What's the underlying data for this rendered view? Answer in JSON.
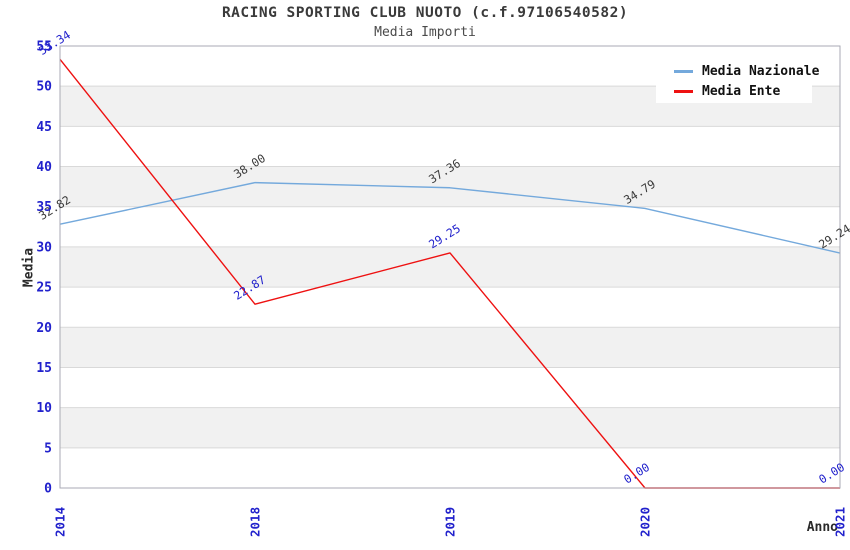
{
  "chart_data": {
    "type": "line",
    "title": "RACING SPORTING CLUB NUOTO (c.f.97106540582)",
    "subtitle": "Media Importi",
    "xlabel": "Anno",
    "ylabel": "Media",
    "categories": [
      "2014",
      "2018",
      "2019",
      "2020",
      "2021"
    ],
    "series": [
      {
        "name": "Media Nazionale",
        "color": "#74a9dc",
        "value_label_color": "#3a3a3a",
        "values": [
          32.82,
          38.0,
          37.36,
          34.79,
          29.24
        ],
        "value_labels": [
          "32.82",
          "38.00",
          "37.36",
          "34.79",
          "29.24"
        ]
      },
      {
        "name": "Media Ente",
        "color": "#ee1111",
        "value_label_color": "#2121cc",
        "values": [
          53.34,
          22.87,
          29.25,
          0.0,
          0.0
        ],
        "value_labels": [
          "53.34",
          "22.87",
          "29.25",
          "0.00",
          "0.00"
        ]
      }
    ],
    "ylim": [
      0,
      55
    ],
    "ytick_step": 5,
    "yticks": [
      "0",
      "5",
      "10",
      "15",
      "20",
      "25",
      "30",
      "35",
      "40",
      "45",
      "50",
      "55"
    ],
    "grid": "horizontal-bands",
    "legend_position": "top-right",
    "colors": {
      "tick_label": "#2121cc",
      "band_fill": "#f1f1f1",
      "gridline": "#d9d9d9",
      "frame": "#a9aab4",
      "title": "#3a3a3a"
    }
  }
}
